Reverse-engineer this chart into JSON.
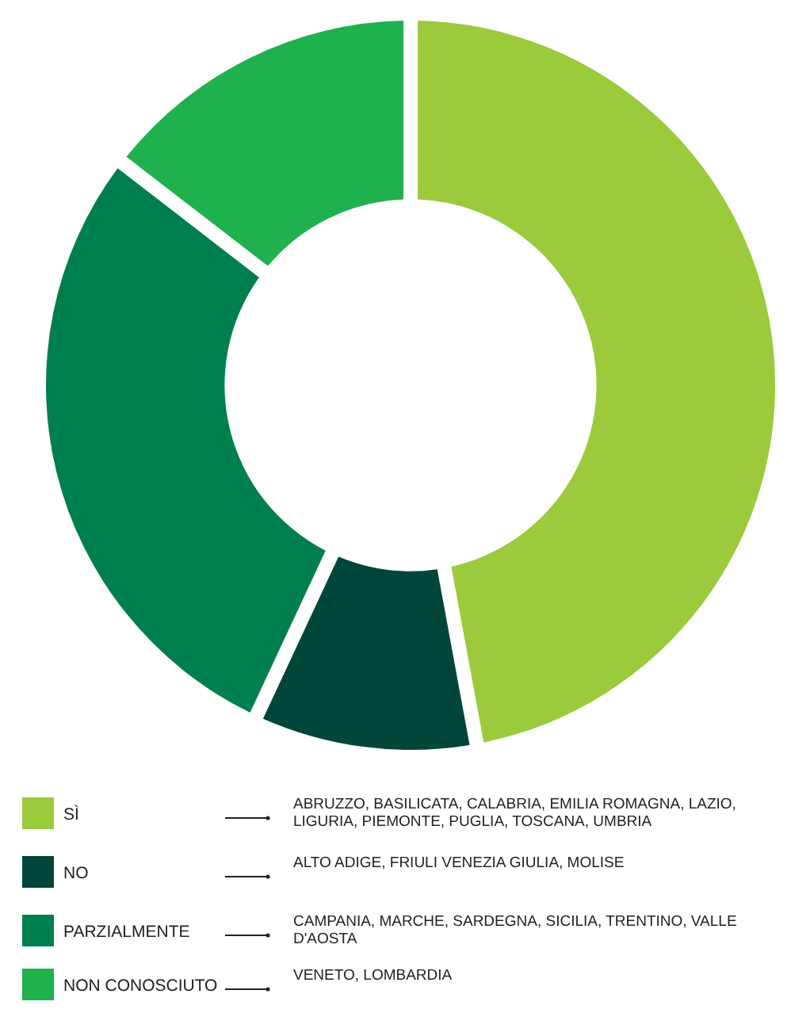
{
  "chart_data": {
    "type": "donut",
    "categories": [
      "SÌ",
      "NO",
      "PARZIALMENTE",
      "NON CONOSCIUTO"
    ],
    "values": [
      47.6,
      9.5,
      28.6,
      14.3
    ],
    "colors": [
      "#9bca3c",
      "#00463a",
      "#007f4e",
      "#1fb14e"
    ],
    "legend": "bottom",
    "annotations": [
      "ABRUZZO, BASILICATA, CALABRIA, EMILIA ROMAGNA, LAZIO, LIGURIA, PIEMONTE, PUGLIA, TOSCANA, UMBRIA",
      "ALTO ADIGE, FRIULI VENEZIA GIULIA, MOLISE",
      "CAMPANIA, MARCHE, SARDEGNA, SICILIA, TRENTINO, VALLE D'AOSTA",
      "VENETO, LOMBARDIA"
    ]
  }
}
